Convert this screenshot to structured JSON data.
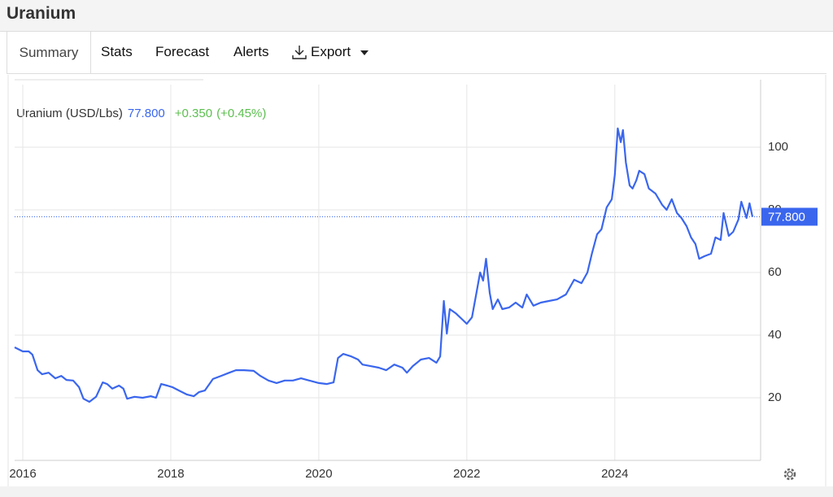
{
  "header": {
    "title": "Uranium"
  },
  "tabs": [
    "Summary",
    "Stats",
    "Forecast",
    "Alerts",
    "Export"
  ],
  "chart_data": {
    "type": "line",
    "x": [
      2015.89,
      2016.0,
      2016.08,
      2016.13,
      2016.2,
      2016.26,
      2016.35,
      2016.44,
      2016.52,
      2016.59,
      2016.68,
      2016.76,
      2016.82,
      2016.9,
      2016.99,
      2017.08,
      2017.14,
      2017.21,
      2017.3,
      2017.36,
      2017.41,
      2017.51,
      2017.62,
      2017.73,
      2017.8,
      2017.87,
      2017.95,
      2018.02,
      2018.11,
      2018.22,
      2018.31,
      2018.38,
      2018.46,
      2018.57,
      2018.68,
      2018.79,
      2018.88,
      2018.99,
      2019.12,
      2019.21,
      2019.32,
      2019.43,
      2019.54,
      2019.65,
      2019.76,
      2019.87,
      2020.0,
      2020.11,
      2020.2,
      2020.26,
      2020.33,
      2020.44,
      2020.53,
      2020.59,
      2020.7,
      2020.81,
      2020.91,
      2021.02,
      2021.13,
      2021.19,
      2021.27,
      2021.38,
      2021.49,
      2021.59,
      2021.64,
      2021.69,
      2021.73,
      2021.77,
      2021.85,
      2021.93,
      2022.0,
      2022.07,
      2022.13,
      2022.18,
      2022.22,
      2022.26,
      2022.31,
      2022.35,
      2022.42,
      2022.48,
      2022.57,
      2022.66,
      2022.75,
      2022.81,
      2022.9,
      2023.0,
      2023.11,
      2023.22,
      2023.34,
      2023.45,
      2023.55,
      2023.63,
      2023.69,
      2023.76,
      2023.82,
      2023.89,
      2023.96,
      2024.0,
      2024.04,
      2024.08,
      2024.11,
      2024.15,
      2024.2,
      2024.24,
      2024.29,
      2024.33,
      2024.4,
      2024.46,
      2024.55,
      2024.64,
      2024.7,
      2024.77,
      2024.84,
      2024.9,
      2024.97,
      2025.03,
      2025.09,
      2025.14,
      2025.21,
      2025.3,
      2025.36,
      2025.43,
      2025.47,
      2025.54,
      2025.6,
      2025.67,
      2025.71,
      2025.78,
      2025.82,
      2025.86
    ],
    "series": [
      {
        "name": "Uranium (USD/Lbs)",
        "color": "#3a66ee",
        "values": [
          36.1,
          34.8,
          34.8,
          33.8,
          28.8,
          27.5,
          28,
          26.2,
          27,
          25.7,
          25.5,
          23.4,
          19.7,
          18.7,
          20.3,
          24.9,
          24.4,
          22.9,
          23.9,
          22.9,
          19.7,
          20.3,
          20,
          20.5,
          20,
          24.4,
          23.9,
          23.4,
          22.3,
          21,
          20.5,
          21.8,
          22.3,
          26,
          27,
          28,
          28.8,
          28.8,
          28.6,
          27,
          25.5,
          24.7,
          25.5,
          25.5,
          26.2,
          25.5,
          24.7,
          24.4,
          24.9,
          32.7,
          34,
          33.2,
          32.2,
          30.6,
          30.1,
          29.6,
          28.8,
          30.6,
          29.6,
          28,
          30.1,
          32.2,
          32.7,
          31.2,
          33.2,
          50.9,
          40.5,
          48.3,
          47,
          45.2,
          43.6,
          45.7,
          53.5,
          60,
          57.4,
          64.4,
          53.5,
          48.3,
          51.4,
          48.3,
          48.8,
          50.4,
          48.8,
          53,
          49.4,
          50.4,
          50.9,
          51.4,
          53,
          57.7,
          56.6,
          60,
          66,
          72.2,
          73.8,
          80.8,
          83.4,
          91.2,
          106,
          101.6,
          105.5,
          95.1,
          87.8,
          86.8,
          89.4,
          92.5,
          91.4,
          86.8,
          85.2,
          81.6,
          80,
          83.4,
          79,
          77.4,
          74.8,
          71.2,
          69.1,
          64.4,
          65.2,
          66,
          71.2,
          70.4,
          79,
          71.7,
          73,
          76.9,
          82.6,
          77.4,
          82.1,
          77.8
        ]
      }
    ],
    "current": {
      "value": 77.8,
      "label": "77.800"
    },
    "change": {
      "value": 0.35,
      "label": "+0.350"
    },
    "change_pct": {
      "value": 0.45,
      "label": "(+0.45%)"
    },
    "xlim": [
      2015.89,
      2025.97
    ],
    "xticks": [
      2016,
      2018,
      2020,
      2022,
      2024
    ],
    "ylim": [
      0,
      120
    ],
    "yticks": [
      20,
      40,
      60,
      80,
      100
    ],
    "grid": true
  }
}
